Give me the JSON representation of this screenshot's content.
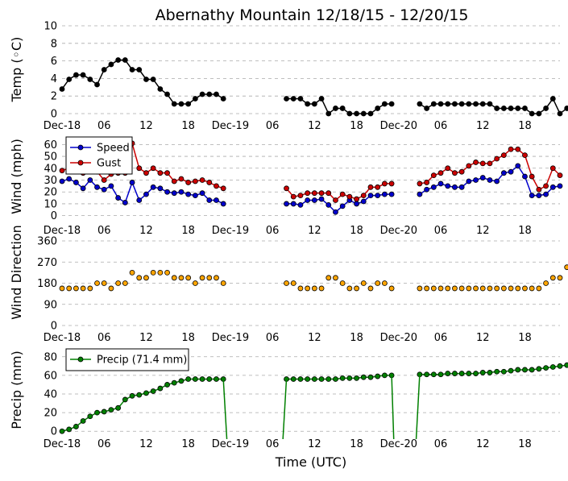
{
  "title": "Abernathy Mountain 12/18/15 - 12/20/15",
  "xlabel": "Time (UTC)",
  "x_ticks": [
    {
      "hour": 0,
      "label": "Dec-18"
    },
    {
      "hour": 6,
      "label": "06"
    },
    {
      "hour": 12,
      "label": "12"
    },
    {
      "hour": 18,
      "label": "18"
    },
    {
      "hour": 24,
      "label": "Dec-19"
    },
    {
      "hour": 30,
      "label": "06"
    },
    {
      "hour": 36,
      "label": "12"
    },
    {
      "hour": 42,
      "label": "18"
    },
    {
      "hour": 48,
      "label": "Dec-20"
    },
    {
      "hour": 54,
      "label": "06"
    },
    {
      "hour": 60,
      "label": "12"
    },
    {
      "hour": 66,
      "label": "18"
    }
  ],
  "colors": {
    "temp": "#000000",
    "speed": "#0000cc",
    "gust": "#cc0000",
    "direction": "#ffa500",
    "precip": "#008000",
    "grid": "#aaaaaa"
  },
  "chart_data": [
    {
      "type": "line",
      "name": "temperature",
      "ylabel": "Temp (◦C)",
      "ylim": [
        0,
        10
      ],
      "yticks": [
        0,
        2,
        4,
        6,
        8,
        10
      ],
      "xlim": [
        0,
        71
      ],
      "series": [
        {
          "name": "Temp",
          "color": "#000000",
          "segments": [
            {
              "start": 0,
              "values": [
                2.8,
                3.9,
                4.4,
                4.4,
                3.9,
                3.3,
                5.0,
                5.6,
                6.1,
                6.1,
                5.0,
                5.0,
                3.9,
                3.9,
                2.8,
                2.2,
                1.1,
                1.1,
                1.1,
                1.7,
                2.2,
                2.2,
                2.2,
                1.7
              ]
            },
            {
              "start": 32,
              "values": [
                1.7,
                1.7,
                1.7,
                1.1,
                1.1,
                1.7,
                0.0,
                0.6,
                0.6,
                0.0,
                0.0,
                0.0,
                0.0,
                0.6,
                1.1,
                1.1
              ]
            },
            {
              "start": 51,
              "values": [
                1.1,
                0.6,
                1.1,
                1.1,
                1.1,
                1.1,
                1.1,
                1.1,
                1.1,
                1.1,
                1.1,
                0.6,
                0.6,
                0.6,
                0.6,
                0.6,
                0.0,
                0.0,
                0.6,
                1.7,
                0.0,
                0.6
              ]
            }
          ]
        }
      ]
    },
    {
      "type": "line",
      "name": "wind",
      "ylabel": "Wind (mph)",
      "ylim": [
        -5,
        65
      ],
      "yticks": [
        0,
        10,
        20,
        30,
        40,
        50,
        60
      ],
      "xlim": [
        0,
        71
      ],
      "legend": {
        "placement": "upper-left",
        "entries": [
          "Speed",
          "Gust"
        ]
      },
      "series": [
        {
          "name": "Speed",
          "color": "#0000cc",
          "segments": [
            {
              "start": 0,
              "values": [
                29,
                31,
                28,
                23,
                30,
                24,
                22,
                25,
                15,
                11,
                28,
                13,
                18,
                24,
                23,
                20,
                19,
                20,
                18,
                17,
                19,
                13,
                13,
                10
              ]
            },
            {
              "start": 32,
              "values": [
                10,
                10,
                9,
                13,
                13,
                14,
                9,
                3,
                8,
                13,
                10,
                12,
                17,
                17,
                18,
                18
              ]
            },
            {
              "start": 51,
              "values": [
                18,
                22,
                24,
                27,
                25,
                24,
                24,
                29,
                30,
                32,
                30,
                29,
                36,
                37,
                42,
                33,
                17,
                17,
                18,
                24,
                25
              ]
            }
          ]
        },
        {
          "name": "Gust",
          "color": "#cc0000",
          "segments": [
            {
              "start": 0,
              "values": [
                38,
                40,
                38,
                36,
                38,
                37,
                30,
                35,
                36,
                36,
                61,
                40,
                36,
                40,
                36,
                36,
                29,
                31,
                28,
                29,
                30,
                28,
                25,
                23
              ]
            },
            {
              "start": 32,
              "values": [
                23,
                16,
                17,
                19,
                19,
                19,
                19,
                13,
                18,
                16,
                14,
                17,
                24,
                24,
                27,
                27
              ]
            },
            {
              "start": 51,
              "values": [
                27,
                28,
                34,
                36,
                40,
                36,
                37,
                42,
                45,
                44,
                44,
                48,
                51,
                56,
                56,
                51,
                33,
                22,
                25,
                40,
                34
              ]
            }
          ]
        }
      ]
    },
    {
      "type": "scatter",
      "name": "wind-direction",
      "ylabel": "Wind Direction",
      "ylim": [
        0,
        360
      ],
      "yticks": [
        0,
        90,
        180,
        270,
        360
      ],
      "xlim": [
        0,
        71
      ],
      "series": [
        {
          "name": "Direction",
          "color": "#ffa500",
          "segments": [
            {
              "start": 0,
              "values": [
                158,
                158,
                158,
                158,
                158,
                180,
                180,
                158,
                180,
                180,
                225,
                203,
                203,
                225,
                225,
                225,
                203,
                203,
                203,
                180,
                203,
                203,
                203,
                180
              ]
            },
            {
              "start": 32,
              "values": [
                180,
                180,
                158,
                158,
                158,
                158,
                203,
                203,
                180,
                158,
                158,
                180,
                158,
                180,
                180,
                158
              ]
            },
            {
              "start": 51,
              "values": [
                158,
                158,
                158,
                158,
                158,
                158,
                158,
                158,
                158,
                158,
                158,
                158,
                158,
                158,
                158,
                158,
                158,
                158,
                180,
                203,
                203,
                248,
                225
              ]
            }
          ]
        }
      ]
    },
    {
      "type": "line",
      "name": "precipitation",
      "ylabel": "Precip (mm)",
      "ylim": [
        -5,
        85
      ],
      "yticks": [
        0,
        20,
        40,
        60,
        80
      ],
      "xlim": [
        0,
        71
      ],
      "legend": {
        "placement": "upper-left",
        "entries": [
          "Precip (71.4 mm)"
        ]
      },
      "series": [
        {
          "name": "Precip (71.4 mm)",
          "color": "#008000",
          "segments": [
            {
              "start": 0,
              "values": [
                0,
                2,
                5,
                11,
                16,
                20,
                21,
                23,
                25,
                34,
                38,
                39,
                41,
                43,
                46,
                50,
                52,
                54,
                56,
                56,
                56,
                56,
                56,
                56
              ]
            },
            {
              "start": 32,
              "values": [
                56,
                56,
                56,
                56,
                56,
                56,
                56,
                56,
                57,
                57,
                57,
                58,
                58,
                59,
                60,
                60
              ]
            },
            {
              "start": 51,
              "values": [
                61,
                61,
                61,
                61,
                62,
                62,
                62,
                62,
                62,
                63,
                63,
                64,
                64,
                65,
                66,
                66,
                66,
                67,
                68,
                69,
                70,
                71
              ]
            }
          ]
        }
      ],
      "drops": [
        {
          "from_hour": 23,
          "to_hour": 23.5
        },
        {
          "from_hour": 31.5,
          "to_hour": 32
        },
        {
          "from_hour": 47,
          "to_hour": 47.3
        },
        {
          "from_hour": 50.5,
          "to_hour": 51
        }
      ]
    }
  ]
}
